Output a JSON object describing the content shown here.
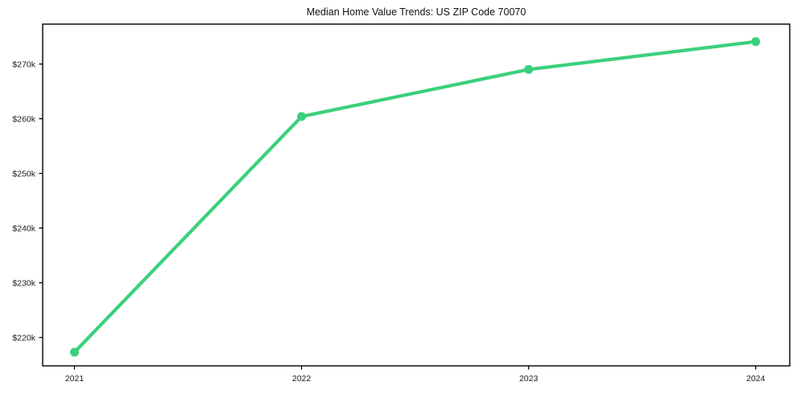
{
  "chart_data": {
    "type": "line",
    "title": "Median Home Value Trends: US ZIP Code 70070",
    "x": [
      2021,
      2022,
      2023,
      2024
    ],
    "x_tick_labels": [
      "2021",
      "2022",
      "2023",
      "2024"
    ],
    "series": [
      {
        "name": "median-home-value",
        "values": [
          217300,
          260400,
          269000,
          274100
        ],
        "color": "#3bd07c",
        "marker": "circle",
        "marker_radius": 5.5,
        "line_width": 4.2
      }
    ],
    "y_ticks": [
      {
        "value": 220000,
        "label": "$220k"
      },
      {
        "value": 230000,
        "label": "$230k"
      },
      {
        "value": 240000,
        "label": "$240k"
      },
      {
        "value": 250000,
        "label": "$250k"
      },
      {
        "value": 260000,
        "label": "$260k"
      },
      {
        "value": 270000,
        "label": "$270k"
      }
    ],
    "xlim": [
      2020.86,
      2024.15
    ],
    "ylim": [
      214800,
      277300
    ],
    "xlabel": "",
    "ylabel": "",
    "grid": false,
    "legend": "none",
    "background": "#ffffff",
    "axis_color": "#000000",
    "tick_color": "#1a1a1a",
    "text_color": "#1a1a1a"
  }
}
